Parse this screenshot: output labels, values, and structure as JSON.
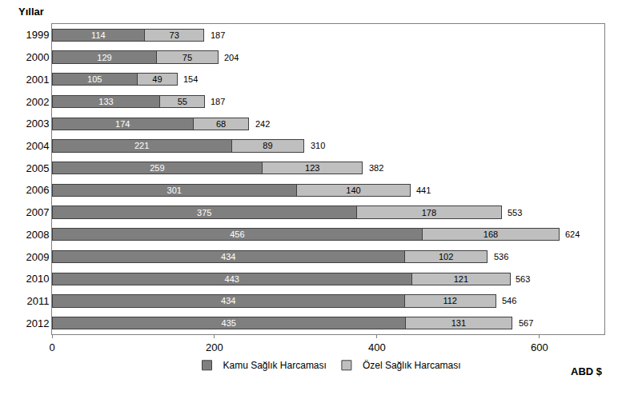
{
  "chart_data": {
    "type": "bar",
    "orientation": "horizontal",
    "stacked": true,
    "data_labels": true,
    "categories": [
      "1999",
      "2000",
      "2001",
      "2002",
      "2003",
      "2004",
      "2005",
      "2006",
      "2007",
      "2008",
      "2009",
      "2010",
      "2011",
      "2012"
    ],
    "series": [
      {
        "name": "Kamu Sağlık Harcaması",
        "color": "#7f7f7f",
        "values": [
          114,
          129,
          105,
          133,
          174,
          221,
          259,
          301,
          375,
          456,
          434,
          443,
          434,
          435
        ]
      },
      {
        "name": "Özel Sağlık Harcaması",
        "color": "#bfbfbf",
        "values": [
          73,
          75,
          49,
          55,
          68,
          89,
          123,
          140,
          178,
          168,
          102,
          121,
          112,
          131
        ]
      }
    ],
    "totals": [
      187,
      204,
      154,
      187,
      242,
      310,
      382,
      441,
      553,
      624,
      536,
      563,
      546,
      567
    ],
    "xlim": [
      0,
      680
    ],
    "xticks": [
      0,
      200,
      400,
      600
    ],
    "xlabel": "ABD $",
    "ylabel": "Yıllar",
    "legend": "bottom",
    "grid": false
  }
}
